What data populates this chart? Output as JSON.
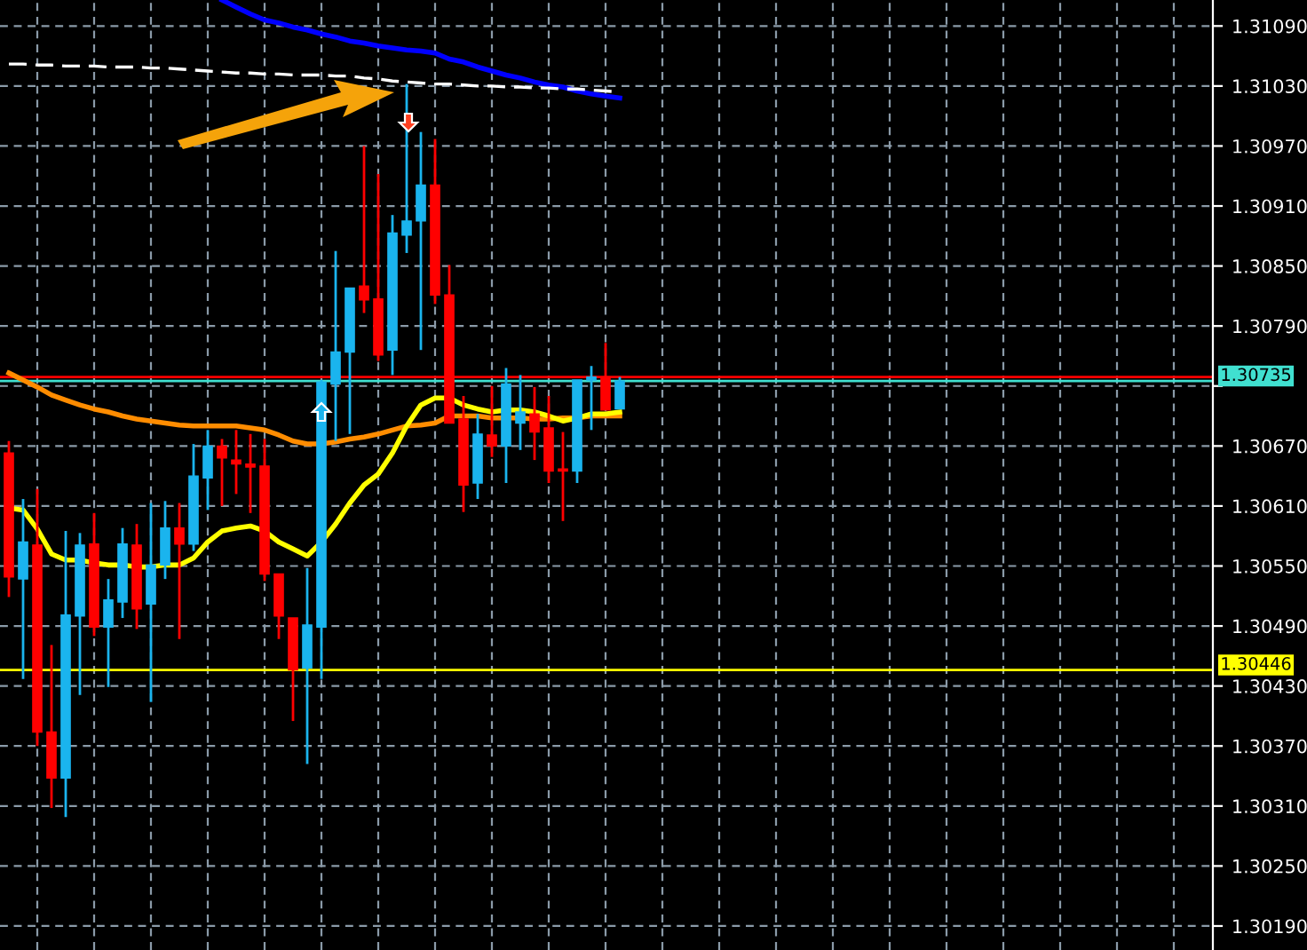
{
  "chart_data": {
    "type": "candlestick",
    "categories": [
      null,
      null,
      null,
      null,
      null,
      null,
      null,
      null,
      null,
      null,
      null,
      null,
      null,
      null,
      null,
      null,
      null,
      null,
      null,
      null,
      null,
      null,
      null,
      null,
      null,
      null,
      null,
      null,
      null,
      null,
      null,
      null,
      null,
      null,
      null,
      null,
      null,
      null,
      null,
      null,
      null,
      null,
      null,
      null
    ],
    "ohlc": [
      [
        1.30663,
        1.30675,
        1.30519,
        1.30539
      ],
      [
        1.30537,
        1.30617,
        1.30437,
        1.30574
      ],
      [
        1.30571,
        1.30627,
        1.3037,
        1.30384
      ],
      [
        1.30384,
        1.30471,
        1.30308,
        1.30338
      ],
      [
        1.30338,
        1.30585,
        1.30299,
        1.30501
      ],
      [
        1.305,
        1.30583,
        1.30421,
        1.30571
      ],
      [
        1.30572,
        1.30603,
        1.3048,
        1.30489
      ],
      [
        1.30489,
        1.30537,
        1.30429,
        1.30516
      ],
      [
        1.30514,
        1.30588,
        1.30498,
        1.30572
      ],
      [
        1.30571,
        1.30592,
        1.30487,
        1.30507
      ],
      [
        1.30512,
        1.30613,
        1.30414,
        1.30551
      ],
      [
        1.30551,
        1.30615,
        1.30537,
        1.30588
      ],
      [
        1.30588,
        1.30613,
        1.30477,
        1.30572
      ],
      [
        1.30572,
        1.30672,
        1.30565,
        1.3064
      ],
      [
        1.30638,
        1.30686,
        1.30606,
        1.3067
      ],
      [
        1.3067,
        1.30677,
        1.3061,
        1.30658
      ],
      [
        1.30656,
        1.30686,
        1.30622,
        1.30652
      ],
      [
        1.30652,
        1.30682,
        1.30603,
        1.30649
      ],
      [
        1.3065,
        1.30677,
        1.30535,
        1.30542
      ],
      [
        1.30542,
        1.30542,
        1.30477,
        1.305
      ],
      [
        1.30498,
        1.30498,
        1.30395,
        1.30446
      ],
      [
        1.30448,
        1.30548,
        1.30352,
        1.30491
      ],
      [
        1.30489,
        1.30736,
        1.30437,
        1.30734
      ],
      [
        1.30732,
        1.30865,
        1.30675,
        1.30764
      ],
      [
        1.30764,
        1.30828,
        1.30682,
        1.30828
      ],
      [
        1.3083,
        1.3097,
        1.30803,
        1.30816
      ],
      [
        1.30817,
        1.30942,
        1.30755,
        1.30761
      ],
      [
        1.30766,
        1.30901,
        1.30741,
        1.30883
      ],
      [
        1.30881,
        1.31032,
        1.30863,
        1.30895
      ],
      [
        1.30895,
        1.30984,
        1.30766,
        1.30931
      ],
      [
        1.30931,
        1.30977,
        1.30812,
        1.30821
      ],
      [
        1.30821,
        1.30851,
        1.30693,
        1.30693
      ],
      [
        1.30697,
        1.3072,
        1.30604,
        1.30631
      ],
      [
        1.30633,
        1.30702,
        1.30617,
        1.30682
      ],
      [
        1.30681,
        1.3073,
        1.30659,
        1.3067
      ],
      [
        1.3067,
        1.30748,
        1.30633,
        1.30732
      ],
      [
        1.30693,
        1.30741,
        1.30666,
        1.30704
      ],
      [
        1.30702,
        1.30729,
        1.30656,
        1.30684
      ],
      [
        1.30688,
        1.3072,
        1.30633,
        1.30645
      ],
      [
        1.30647,
        1.30684,
        1.30595,
        1.30645
      ],
      [
        1.30645,
        1.30736,
        1.30633,
        1.30736
      ],
      [
        1.30736,
        1.3075,
        1.30686,
        1.30739
      ],
      [
        1.30739,
        1.30773,
        1.30706,
        1.30706
      ],
      [
        1.30707,
        1.30739,
        1.30707,
        1.30735
      ]
    ],
    "colors": [
      "#ff0000",
      "#1ab4ee",
      "#ff0000",
      "#ff0000",
      "#1ab4ee",
      "#1ab4ee",
      "#ff0000",
      "#1ab4ee",
      "#1ab4ee",
      "#ff0000",
      "#1ab4ee",
      "#1ab4ee",
      "#ff0000",
      "#1ab4ee",
      "#1ab4ee",
      "#ff0000",
      "#ff0000",
      "#ff0000",
      "#ff0000",
      "#ff0000",
      "#ff0000",
      "#1ab4ee",
      "#1ab4ee",
      "#1ab4ee",
      "#1ab4ee",
      "#ff0000",
      "#ff0000",
      "#1ab4ee",
      "#1ab4ee",
      "#1ab4ee",
      "#ff0000",
      "#ff0000",
      "#ff0000",
      "#1ab4ee",
      "#ff0000",
      "#1ab4ee",
      "#1ab4ee",
      "#ff0000",
      "#ff0000",
      "#ff0000",
      "#1ab4ee",
      "#1ab4ee",
      "#ff0000",
      "#1ab4ee"
    ],
    "series": [
      {
        "type": "line",
        "color": "#0000ff",
        "values": [
          null,
          null,
          null,
          null,
          null,
          null,
          null,
          null,
          null,
          null,
          null,
          null,
          null,
          null,
          null,
          1.31116,
          1.31109,
          1.31102,
          1.31096,
          1.31093,
          1.31089,
          1.31086,
          1.31082,
          1.31079,
          1.31075,
          1.31073,
          1.3107,
          1.31068,
          1.31066,
          1.31065,
          1.31063,
          1.31057,
          1.31054,
          1.31049,
          1.31045,
          1.31041,
          1.31038,
          1.31034,
          1.31031,
          1.31029,
          1.31025,
          1.31022,
          1.3102,
          1.31018
        ]
      },
      {
        "type": "line",
        "color": "#ffffff",
        "line_style": "dashed",
        "values": [
          1.31052,
          1.31052,
          1.31051,
          1.31051,
          1.3105,
          1.3105,
          1.3105,
          1.31049,
          1.31049,
          1.31049,
          1.31048,
          1.31048,
          1.31047,
          1.31046,
          1.31045,
          1.31044,
          1.31043,
          1.31043,
          1.31042,
          1.31042,
          1.31041,
          1.31041,
          1.31041,
          1.3104,
          1.3104,
          1.31038,
          1.31037,
          1.31035,
          1.31034,
          1.31033,
          1.31032,
          1.31032,
          1.31031,
          1.3103,
          1.3103,
          1.31029,
          1.31029,
          1.31028,
          1.31028,
          1.31027,
          1.31027,
          1.31026,
          1.31025,
          1.31024
        ]
      },
      {
        "type": "line",
        "color": "#ff8c00",
        "values": [
          1.30743,
          1.30736,
          1.30729,
          1.30721,
          1.30716,
          1.30711,
          1.30707,
          1.30704,
          1.307,
          1.30697,
          1.30695,
          1.30693,
          1.30691,
          1.3069,
          1.3069,
          1.3069,
          1.3069,
          1.30688,
          1.30686,
          1.30681,
          1.30675,
          1.30672,
          1.30672,
          1.30674,
          1.30677,
          1.30679,
          1.30682,
          1.30686,
          1.3069,
          1.30691,
          1.30693,
          1.307,
          1.307,
          1.307,
          1.30698,
          1.30698,
          1.30698,
          1.30697,
          1.30697,
          1.30698,
          1.30698,
          1.307,
          1.307,
          1.307
        ]
      },
      {
        "type": "line",
        "color": "#ffff00",
        "values": [
          1.30608,
          1.30606,
          1.30587,
          1.30562,
          1.30556,
          1.30556,
          1.30553,
          1.30551,
          1.30551,
          1.30549,
          1.30549,
          1.30551,
          1.30551,
          1.30558,
          1.30574,
          1.30585,
          1.30588,
          1.3059,
          1.30585,
          1.30574,
          1.30567,
          1.3056,
          1.30574,
          1.30592,
          1.30613,
          1.30631,
          1.30642,
          1.30663,
          1.3069,
          1.30711,
          1.30718,
          1.30718,
          1.30711,
          1.30707,
          1.30704,
          1.30706,
          1.30706,
          1.30704,
          1.307,
          1.30695,
          1.30698,
          1.30702,
          1.30702,
          1.30704
        ]
      }
    ],
    "ref_lines": [
      {
        "axis": "y",
        "value": 1.30739,
        "color": "#ff0000"
      },
      {
        "axis": "y",
        "value": 1.30735,
        "label": "1.30735",
        "color": "#40e0d0"
      },
      {
        "axis": "y",
        "value": 1.30446,
        "label": "1.30446",
        "color": "#ffff00"
      }
    ],
    "ylim": [
      1.30166,
      1.31116
    ],
    "yticks": [
      {
        "value": 1.3019,
        "label": "1.30190"
      },
      {
        "value": 1.3025,
        "label": "1.30250"
      },
      {
        "value": 1.3031,
        "label": "1.30310"
      },
      {
        "value": 1.3037,
        "label": "1.30370"
      },
      {
        "value": 1.3043,
        "label": "1.30430"
      },
      {
        "value": 1.3049,
        "label": "1.30490"
      },
      {
        "value": 1.3055,
        "label": "1.30550"
      },
      {
        "value": 1.3061,
        "label": "1.30610"
      },
      {
        "value": 1.3067,
        "label": "1.30670"
      },
      {
        "value": 1.3073,
        "label": null
      },
      {
        "value": 1.3079,
        "label": "1.30790"
      },
      {
        "value": 1.3085,
        "label": "1.30850"
      },
      {
        "value": 1.3091,
        "label": "1.30910"
      },
      {
        "value": 1.3097,
        "label": "1.30970"
      },
      {
        "value": 1.3103,
        "label": "1.31030"
      },
      {
        "value": 1.3109,
        "label": "1.31090"
      }
    ],
    "grid": true,
    "tick_labels": "y"
  }
}
